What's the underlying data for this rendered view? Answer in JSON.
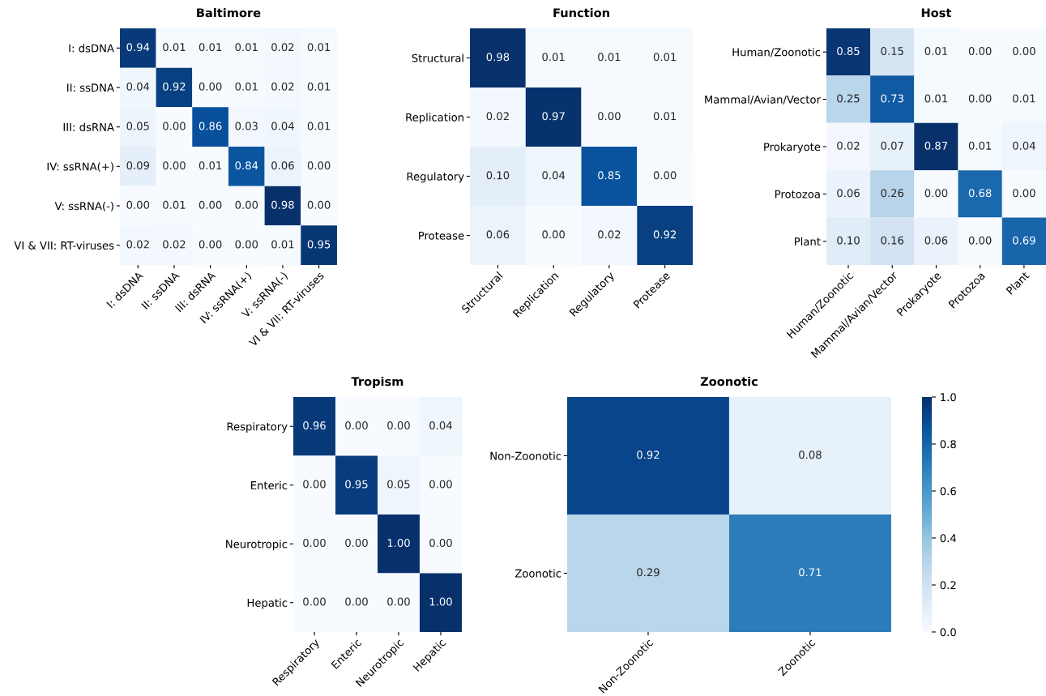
{
  "chart_data": [
    {
      "type": "heatmap",
      "title": "Baltimore",
      "categories": [
        "I: dsDNA",
        "II: ssDNA",
        "III: dsRNA",
        "IV: ssRNA(+)",
        "V: ssRNA(-)",
        "VI & VII: RT-viruses"
      ],
      "y_categories": [
        "I: dsDNA",
        "II: ssDNA",
        "III: dsRNA",
        "IV: ssRNA(+)",
        "V: ssRNA(-)",
        "VI & VII: RT-viruses"
      ],
      "cells": [
        [
          0.94,
          0.01,
          0.01,
          0.01,
          0.02,
          0.01
        ],
        [
          0.04,
          0.92,
          0.0,
          0.01,
          0.02,
          0.01
        ],
        [
          0.05,
          0.0,
          0.86,
          0.03,
          0.04,
          0.01
        ],
        [
          0.09,
          0.0,
          0.01,
          0.84,
          0.06,
          0.0
        ],
        [
          0.0,
          0.01,
          0.0,
          0.0,
          0.98,
          0.0
        ],
        [
          0.02,
          0.02,
          0.0,
          0.0,
          0.01,
          0.95
        ]
      ],
      "cell_labels": [
        [
          "0.94",
          "0.01",
          "0.01",
          "0.01",
          "0.02",
          "0.01"
        ],
        [
          "0.04",
          "0.92",
          "0.00",
          "0.01",
          "0.02",
          "0.01"
        ],
        [
          "0.05",
          "0.00",
          "0.86",
          "0.03",
          "0.04",
          "0.01"
        ],
        [
          "0.09",
          "0.00",
          "0.01",
          "0.84",
          "0.06",
          "0.00"
        ],
        [
          "0.00",
          "0.01",
          "0.00",
          "0.00",
          "0.98",
          "0.00"
        ],
        [
          "0.02",
          "0.02",
          "0.00",
          "0.00",
          "0.01",
          "0.95"
        ]
      ]
    },
    {
      "type": "heatmap",
      "title": "Function",
      "categories": [
        "Structural",
        "Replication",
        "Regulatory",
        "Protease"
      ],
      "y_categories": [
        "Structural",
        "Replication",
        "Regulatory",
        "Protease"
      ],
      "cells": [
        [
          0.98,
          0.01,
          0.01,
          0.01
        ],
        [
          0.02,
          0.97,
          0.0,
          0.01
        ],
        [
          0.1,
          0.04,
          0.85,
          0.0
        ],
        [
          0.06,
          0.0,
          0.02,
          0.92
        ]
      ],
      "cell_labels": [
        [
          "0.98",
          "0.01",
          "0.01",
          "0.01"
        ],
        [
          "0.02",
          "0.97",
          "0.00",
          "0.01"
        ],
        [
          "0.10",
          "0.04",
          "0.85",
          "0.00"
        ],
        [
          "0.06",
          "0.00",
          "0.02",
          "0.92"
        ]
      ]
    },
    {
      "type": "heatmap",
      "title": "Host",
      "categories": [
        "Human/Zoonotic",
        "Mammal/Avian/Vector",
        "Prokaryote",
        "Protozoa",
        "Plant"
      ],
      "y_categories": [
        "Human/Zoonotic",
        "Mammal/Avian/Vector",
        "Prokaryote",
        "Protozoa",
        "Plant"
      ],
      "cells": [
        [
          0.85,
          0.15,
          0.01,
          0.0,
          0.0
        ],
        [
          0.25,
          0.73,
          0.01,
          0.0,
          0.01
        ],
        [
          0.02,
          0.07,
          0.87,
          0.01,
          0.04
        ],
        [
          0.06,
          0.26,
          0.0,
          0.68,
          0.0
        ],
        [
          0.1,
          0.16,
          0.06,
          0.0,
          0.69
        ]
      ],
      "cell_labels": [
        [
          "0.85",
          "0.15",
          "0.01",
          "0.00",
          "0.00"
        ],
        [
          "0.25",
          "0.73",
          "0.01",
          "0.00",
          "0.01"
        ],
        [
          "0.02",
          "0.07",
          "0.87",
          "0.01",
          "0.04"
        ],
        [
          "0.06",
          "0.26",
          "0.00",
          "0.68",
          "0.00"
        ],
        [
          "0.10",
          "0.16",
          "0.06",
          "0.00",
          "0.69"
        ]
      ]
    },
    {
      "type": "heatmap",
      "title": "Tropism",
      "categories": [
        "Respiratory",
        "Enteric",
        "Neurotropic",
        "Hepatic"
      ],
      "y_categories": [
        "Respiratory",
        "Enteric",
        "Neurotropic",
        "Hepatic"
      ],
      "cells": [
        [
          0.96,
          0.0,
          0.0,
          0.04
        ],
        [
          0.0,
          0.95,
          0.05,
          0.0
        ],
        [
          0.0,
          0.0,
          1.0,
          0.0
        ],
        [
          0.0,
          0.0,
          0.0,
          1.0
        ]
      ],
      "cell_labels": [
        [
          "0.96",
          "0.00",
          "0.00",
          "0.04"
        ],
        [
          "0.00",
          "0.95",
          "0.05",
          "0.00"
        ],
        [
          "0.00",
          "0.00",
          "1.00",
          "0.00"
        ],
        [
          "0.00",
          "0.00",
          "0.00",
          "1.00"
        ]
      ]
    },
    {
      "type": "heatmap",
      "title": "Zoonotic",
      "categories": [
        "Non-Zoonotic",
        "Zoonotic"
      ],
      "y_categories": [
        "Non-Zoonotic",
        "Zoonotic"
      ],
      "cells": [
        [
          0.92,
          0.08
        ],
        [
          0.29,
          0.71
        ]
      ],
      "cell_labels": [
        [
          "0.92",
          "0.08"
        ],
        [
          "0.29",
          "0.71"
        ]
      ],
      "clim": [
        0,
        1
      ],
      "cticks": [
        {
          "value": 0,
          "label": "0.0"
        },
        {
          "value": 0.2,
          "label": "0.2"
        },
        {
          "value": 0.4,
          "label": "0.4"
        },
        {
          "value": 0.6,
          "label": "0.6"
        },
        {
          "value": 0.8,
          "label": "0.8"
        },
        {
          "value": 1,
          "label": "1.0"
        }
      ]
    }
  ]
}
